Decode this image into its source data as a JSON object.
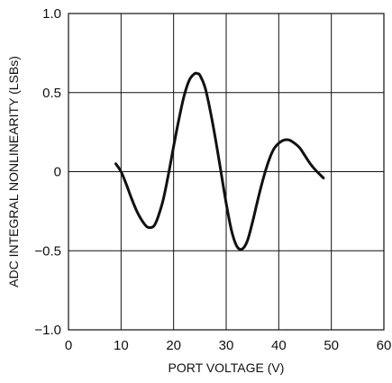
{
  "chart_data": {
    "type": "line",
    "title": "",
    "xlabel": "PORT VOLTAGE (V)",
    "ylabel": "ADC INTEGRAL NONLINEARITY (LSBs)",
    "xlim": [
      0,
      60
    ],
    "ylim": [
      -1.0,
      1.0
    ],
    "x_ticks": [
      0,
      10,
      20,
      30,
      40,
      50,
      60
    ],
    "y_ticks": [
      -1.0,
      -0.5,
      0,
      0.5,
      1.0
    ],
    "x_tick_labels": [
      "0",
      "10",
      "20",
      "30",
      "40",
      "50",
      "60"
    ],
    "y_tick_labels": [
      "−1.0",
      "−0.5",
      "0",
      "0.5",
      "1.0"
    ],
    "grid": true,
    "legend": "none",
    "line_color": "#111111",
    "series": [
      {
        "x": [
          9,
          10,
          11,
          12,
          13,
          14,
          15,
          16,
          16.5,
          17,
          18,
          19,
          20,
          21,
          22,
          23,
          24,
          24.5,
          25,
          26,
          27,
          28,
          29,
          30,
          31,
          32,
          33,
          34,
          35,
          36,
          37,
          38,
          39,
          40,
          41,
          42,
          43,
          44,
          45,
          46,
          47,
          48.5
        ],
        "y": [
          0.05,
          0.0,
          -0.08,
          -0.17,
          -0.25,
          -0.31,
          -0.35,
          -0.35,
          -0.33,
          -0.29,
          -0.18,
          -0.02,
          0.16,
          0.33,
          0.48,
          0.58,
          0.62,
          0.62,
          0.61,
          0.53,
          0.38,
          0.2,
          0.0,
          -0.2,
          -0.37,
          -0.47,
          -0.49,
          -0.44,
          -0.32,
          -0.18,
          -0.05,
          0.06,
          0.14,
          0.18,
          0.2,
          0.2,
          0.18,
          0.15,
          0.1,
          0.05,
          0.01,
          -0.04
        ]
      }
    ]
  }
}
